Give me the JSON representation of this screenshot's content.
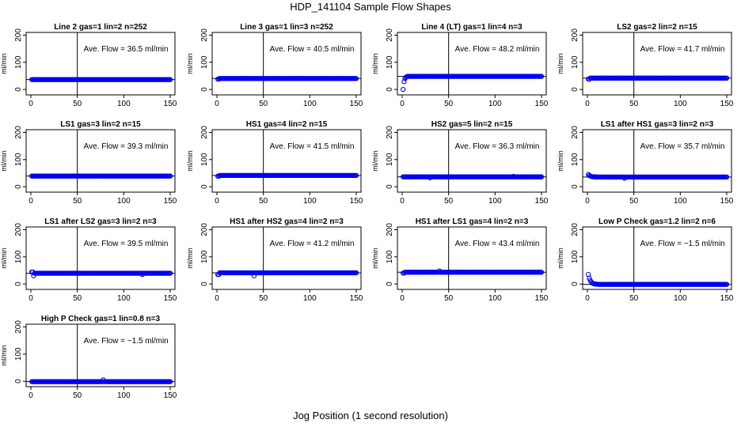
{
  "figure": {
    "title": "HDP_141104  Sample Flow Shapes",
    "xlabel": "Jog Position (1 second resolution)",
    "ylabel": "ml/min"
  },
  "colors": {
    "points": "#0000ee",
    "axis": "#000000"
  },
  "chart_data": [
    {
      "type": "scatter",
      "title": "Line 2 gas=1 lin=2 n=252",
      "annotation": "Ave. Flow =  36.5  ml/min",
      "xlim": [
        0,
        150
      ],
      "ylim": [
        -20,
        210
      ],
      "xticks": [
        0,
        50,
        100,
        150
      ],
      "yticks": [
        0,
        100,
        200
      ],
      "vline_x": 50,
      "hline_y": 36.5,
      "series": [
        {
          "shape": "flat",
          "start": 36.5,
          "level": 36.5,
          "noise": []
        }
      ]
    },
    {
      "type": "scatter",
      "title": "Line 3 gas=1 lin=3 n=252",
      "annotation": "Ave. Flow =  40.5  ml/min",
      "xlim": [
        0,
        150
      ],
      "ylim": [
        -20,
        210
      ],
      "xticks": [
        0,
        50,
        100,
        150
      ],
      "yticks": [
        0,
        100,
        200
      ],
      "vline_x": 50,
      "hline_y": 40.5,
      "series": [
        {
          "shape": "flat",
          "start": 38,
          "level": 40.5,
          "noise": []
        }
      ]
    },
    {
      "type": "scatter",
      "title": "Line 4 (LT) gas=1 lin=4 n=3",
      "annotation": "Ave. Flow =  48.2  ml/min",
      "xlim": [
        0,
        150
      ],
      "ylim": [
        -20,
        210
      ],
      "xticks": [
        0,
        50,
        100,
        150
      ],
      "yticks": [
        0,
        100,
        200
      ],
      "vline_x": 50,
      "hline_y": 48.2,
      "series": [
        {
          "shape": "rise",
          "start": 0,
          "level": 48.2,
          "noise": []
        }
      ]
    },
    {
      "type": "scatter",
      "title": "LS2 gas=2 lin=2 n=15",
      "annotation": "Ave. Flow =  41.7  ml/min",
      "xlim": [
        0,
        150
      ],
      "ylim": [
        -20,
        210
      ],
      "xticks": [
        0,
        50,
        100,
        150
      ],
      "yticks": [
        0,
        100,
        200
      ],
      "vline_x": 50,
      "hline_y": 41.7,
      "series": [
        {
          "shape": "flat",
          "start": 38,
          "level": 41.7,
          "noise": []
        }
      ]
    },
    {
      "type": "scatter",
      "title": "LS1 gas=3 lin=2 n=15",
      "annotation": "Ave. Flow =  39.3  ml/min",
      "xlim": [
        0,
        150
      ],
      "ylim": [
        -20,
        210
      ],
      "xticks": [
        0,
        50,
        100,
        150
      ],
      "yticks": [
        0,
        100,
        200
      ],
      "vline_x": 50,
      "hline_y": 39.3,
      "series": [
        {
          "shape": "flat",
          "start": 39.3,
          "level": 39.3,
          "noise": []
        }
      ]
    },
    {
      "type": "scatter",
      "title": "HS1 gas=4 lin=2 n=15",
      "annotation": "Ave. Flow =  41.5  ml/min",
      "xlim": [
        0,
        150
      ],
      "ylim": [
        -20,
        210
      ],
      "xticks": [
        0,
        50,
        100,
        150
      ],
      "yticks": [
        0,
        100,
        200
      ],
      "vline_x": 50,
      "hline_y": 41.5,
      "series": [
        {
          "shape": "flat",
          "start": 39,
          "level": 41.5,
          "noise": []
        }
      ]
    },
    {
      "type": "scatter",
      "title": "HS2 gas=5 lin=2 n=15",
      "annotation": "Ave. Flow =  36.3  ml/min",
      "xlim": [
        0,
        150
      ],
      "ylim": [
        -20,
        210
      ],
      "xticks": [
        0,
        50,
        100,
        150
      ],
      "yticks": [
        0,
        100,
        200
      ],
      "vline_x": 50,
      "hline_y": 36.3,
      "series": [
        {
          "shape": "flat",
          "start": 36.3,
          "level": 36.3,
          "noise": [
            [
              30,
              33
            ],
            [
              120,
              38
            ]
          ]
        }
      ]
    },
    {
      "type": "scatter",
      "title": "LS1 after HS1 gas=3 lin=2 n=3",
      "annotation": "Ave. Flow =  35.7  ml/min",
      "xlim": [
        0,
        150
      ],
      "ylim": [
        -20,
        210
      ],
      "xticks": [
        0,
        50,
        100,
        150
      ],
      "yticks": [
        0,
        100,
        200
      ],
      "vline_x": 50,
      "hline_y": 35.7,
      "series": [
        {
          "shape": "decay",
          "start": 45,
          "level": 35.7,
          "noise": [
            [
              40,
              31
            ]
          ]
        }
      ]
    },
    {
      "type": "scatter",
      "title": "LS1 after LS2 gas=3 lin=2 n=3",
      "annotation": "Ave. Flow =  39.5  ml/min",
      "xlim": [
        0,
        150
      ],
      "ylim": [
        -20,
        210
      ],
      "xticks": [
        0,
        50,
        100,
        150
      ],
      "yticks": [
        0,
        100,
        200
      ],
      "vline_x": 50,
      "hline_y": 39.5,
      "series": [
        {
          "shape": "flat",
          "start": 44,
          "level": 39.5,
          "noise": [
            [
              3,
              30
            ],
            [
              120,
              35
            ]
          ]
        }
      ]
    },
    {
      "type": "scatter",
      "title": "HS1 after HS2 gas=4 lin=2 n=3",
      "annotation": "Ave. Flow =  41.2  ml/min",
      "xlim": [
        0,
        150
      ],
      "ylim": [
        -20,
        210
      ],
      "xticks": [
        0,
        50,
        100,
        150
      ],
      "yticks": [
        0,
        100,
        200
      ],
      "vline_x": 50,
      "hline_y": 41.2,
      "series": [
        {
          "shape": "flat",
          "start": 35,
          "level": 41.2,
          "noise": [
            [
              40,
              30
            ]
          ]
        }
      ]
    },
    {
      "type": "scatter",
      "title": "HS1 after LS1 gas=4 lin=2 n=3",
      "annotation": "Ave. Flow =  43.4  ml/min",
      "xlim": [
        0,
        150
      ],
      "ylim": [
        -20,
        210
      ],
      "xticks": [
        0,
        50,
        100,
        150
      ],
      "yticks": [
        0,
        100,
        200
      ],
      "vline_x": 50,
      "hline_y": 43.4,
      "series": [
        {
          "shape": "flat",
          "start": 40,
          "level": 43.4,
          "noise": [
            [
              40,
              48
            ]
          ]
        }
      ]
    },
    {
      "type": "scatter",
      "title": "Low P Check gas=1.2 lin=2 n=6",
      "annotation": "Ave. Flow =  −1.5  ml/min",
      "xlim": [
        0,
        150
      ],
      "ylim": [
        -20,
        210
      ],
      "xticks": [
        0,
        50,
        100,
        150
      ],
      "yticks": [
        0,
        100,
        200
      ],
      "vline_x": 50,
      "hline_y": -1.5,
      "series": [
        {
          "shape": "decay",
          "start": 35,
          "level": -1.5,
          "noise": []
        }
      ]
    },
    {
      "type": "scatter",
      "title": "High P Check gas=1 lin=0.8 n=3",
      "annotation": "Ave. Flow =  −1.5  ml/min",
      "xlim": [
        0,
        150
      ],
      "ylim": [
        -20,
        210
      ],
      "xticks": [
        0,
        50,
        100,
        150
      ],
      "yticks": [
        0,
        100,
        200
      ],
      "vline_x": 50,
      "hline_y": -1.5,
      "series": [
        {
          "shape": "flat",
          "start": -1.5,
          "level": -1.5,
          "noise": [
            [
              78,
              5
            ]
          ]
        }
      ]
    }
  ]
}
